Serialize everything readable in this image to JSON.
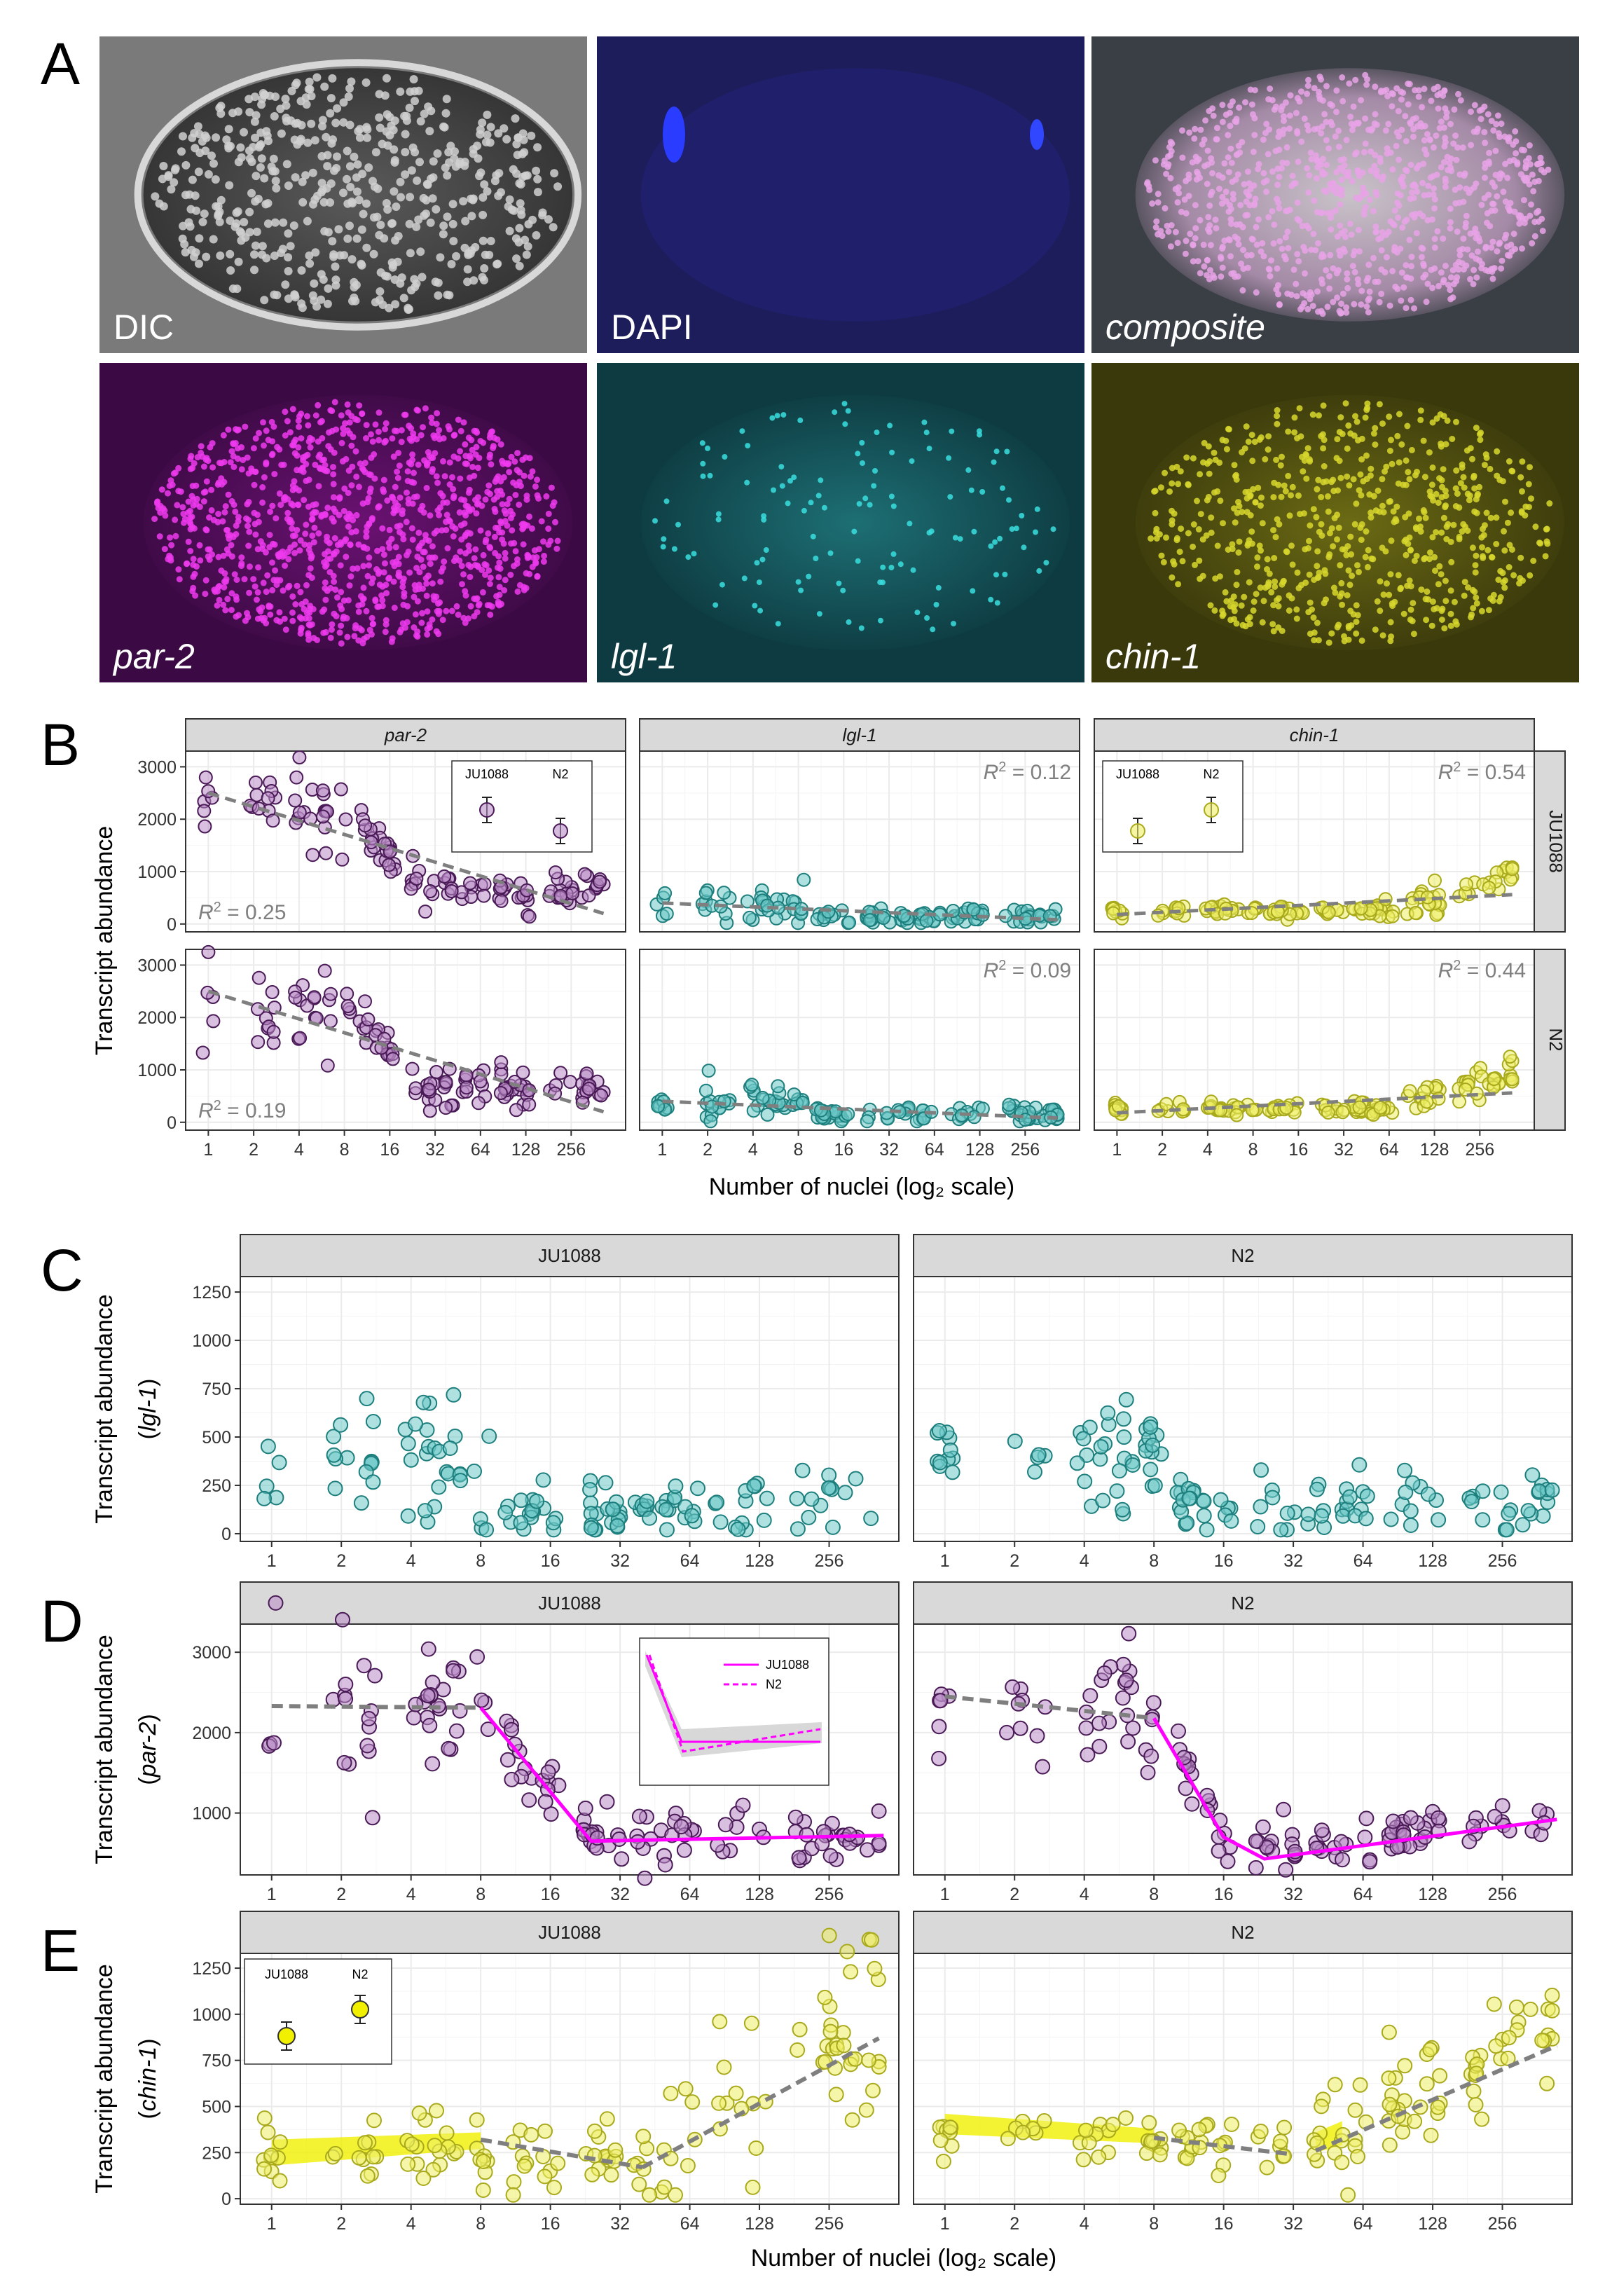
{
  "images": {
    "letter": "A",
    "panels": [
      {
        "label": "DIC",
        "italic": false,
        "kind": "dic"
      },
      {
        "label": "DAPI",
        "italic": false,
        "kind": "dapi"
      },
      {
        "label": "composite",
        "italic": true,
        "kind": "composite"
      },
      {
        "label": "par-2",
        "italic": true,
        "kind": "par2"
      },
      {
        "label": "lgl-1",
        "italic": true,
        "kind": "lgl1"
      },
      {
        "label": "chin-1",
        "italic": true,
        "kind": "chin1"
      }
    ]
  },
  "colors": {
    "par2": "#b98dc6",
    "par2_edge": "#4a1a57",
    "lgl1": "#6cc9c6",
    "lgl1_edge": "#1d7f7d",
    "chin1": "#eeee66",
    "chin1_edge": "#a9a91c",
    "magenta": "#ff00ff",
    "trend": "#7f7f7f"
  },
  "chart_data": [
    {
      "panel": "B",
      "type": "scatter",
      "xlabel": "Number of nuclei (log₂ scale)",
      "ylabel": "Transcript abundance",
      "x_scale": "log2",
      "x_ticks": [
        1,
        2,
        4,
        8,
        16,
        32,
        64,
        128,
        256
      ],
      "y_ticks": [
        0,
        1000,
        2000,
        3000
      ],
      "ylim": [
        0,
        3300
      ],
      "columns": [
        "par-2",
        "lgl-1",
        "chin-1"
      ],
      "rows": [
        "JU1088",
        "N2"
      ],
      "r_squared": [
        {
          "gene": "par-2",
          "strain": "JU1088",
          "text": "= 0.25"
        },
        {
          "gene": "par-2",
          "strain": "N2",
          "text": "= 0.19"
        },
        {
          "gene": "lgl-1",
          "strain": "JU1088",
          "text": "= 0.12"
        },
        {
          "gene": "lgl-1",
          "strain": "N2",
          "text": "= 0.09"
        },
        {
          "gene": "chin-1",
          "strain": "JU1088",
          "text": "= 0.54"
        },
        {
          "gene": "chin-1",
          "strain": "N2",
          "text": "= 0.44"
        }
      ],
      "insets": [
        {
          "gene": "par-2",
          "labels": [
            "JU1088",
            "N2"
          ],
          "means": [
            2500,
            1900
          ]
        },
        {
          "gene": "chin-1",
          "labels": [
            "JU1088",
            "N2"
          ],
          "means": [
            330,
            450
          ]
        }
      ]
    },
    {
      "panel": "C",
      "type": "scatter",
      "ylabel": "Transcript abundance",
      "ylabel_gene": "lgl-1",
      "x_scale": "log2",
      "x_ticks": [
        1,
        2,
        4,
        8,
        16,
        32,
        64,
        128,
        256
      ],
      "y_ticks": [
        0,
        250,
        500,
        750,
        1000,
        1250
      ],
      "ylim": [
        -40,
        1330
      ],
      "facets": [
        "JU1088",
        "N2"
      ]
    },
    {
      "panel": "D",
      "type": "scatter",
      "ylabel": "Transcript abundance",
      "ylabel_gene": "par-2",
      "x_scale": "log2",
      "x_ticks": [
        1,
        2,
        4,
        8,
        16,
        32,
        64,
        128,
        256
      ],
      "y_ticks": [
        1000,
        2000,
        3000
      ],
      "ylim": [
        230,
        3350
      ],
      "facets": [
        "JU1088",
        "N2"
      ],
      "segments": [
        {
          "strain": "JU1088",
          "breaks": [
            1,
            8,
            24,
            440
          ],
          "values": [
            2330,
            2310,
            650,
            720
          ]
        },
        {
          "strain": "N2",
          "breaks": [
            1,
            8,
            16,
            24,
            440
          ],
          "values": [
            2450,
            2180,
            700,
            430,
            920
          ]
        }
      ],
      "inset_legend": [
        "JU1088",
        "N2"
      ]
    },
    {
      "panel": "E",
      "type": "scatter",
      "ylabel": "Transcript abundance",
      "ylabel_gene": "chin-1",
      "xlabel": "Number of nuclei (log₂ scale)",
      "x_scale": "log2",
      "x_ticks": [
        1,
        2,
        4,
        8,
        16,
        32,
        64,
        128,
        256
      ],
      "y_ticks": [
        0,
        250,
        500,
        750,
        1000,
        1250
      ],
      "ylim": [
        -30,
        1330
      ],
      "facets": [
        "JU1088",
        "N2"
      ],
      "inset": {
        "labels": [
          "JU1088",
          "N2"
        ],
        "means": [
          810,
          1040
        ]
      }
    }
  ]
}
